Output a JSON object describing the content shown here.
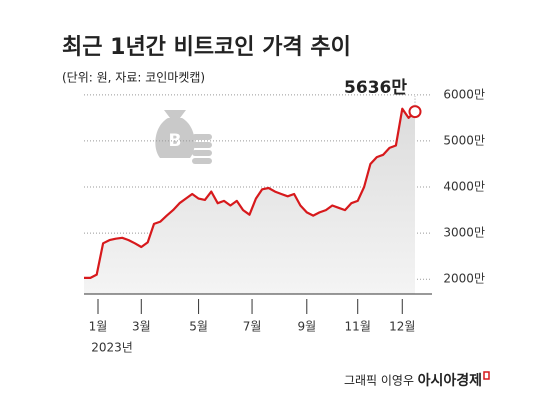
{
  "chart_data": {
    "type": "line",
    "title": "최근 1년간 비트코인 가격 추이",
    "subtitle": "(단위: 원, 자료: 코인마켓캡)",
    "xlabel": "2023년",
    "x": [
      0,
      1,
      2,
      3,
      4,
      5,
      6,
      7,
      8,
      9,
      10,
      11,
      12,
      13,
      14,
      15,
      16,
      17,
      18,
      19,
      20,
      21,
      22,
      23,
      24,
      25,
      26,
      27,
      28,
      29,
      30,
      31,
      32,
      33,
      34,
      35,
      36,
      37,
      38,
      39,
      40,
      41,
      42,
      43,
      44,
      45,
      46,
      47,
      48,
      49,
      50,
      51,
      52
    ],
    "series": [
      {
        "color": "#d7191c",
        "values": [
          2030,
          2030,
          2100,
          2780,
          2850,
          2880,
          2900,
          2850,
          2780,
          2700,
          2800,
          3200,
          3250,
          3380,
          3500,
          3650,
          3750,
          3850,
          3750,
          3720,
          3900,
          3650,
          3700,
          3600,
          3700,
          3500,
          3400,
          3750,
          3950,
          3980,
          3900,
          3850,
          3800,
          3850,
          3600,
          3450,
          3380,
          3450,
          3500,
          3600,
          3550,
          3500,
          3650,
          3700,
          4000,
          4500,
          4650,
          4700,
          4850,
          4900,
          5700,
          5500,
          5636
        ]
      }
    ],
    "annotations": [
      {
        "x": 52,
        "value": 5636,
        "label": "5636만"
      }
    ],
    "xlim": [
      0,
      52
    ],
    "xticks": [
      {
        "value": 2.2,
        "label": "1월"
      },
      {
        "value": 9,
        "label": "3월"
      },
      {
        "value": 18,
        "label": "5월"
      },
      {
        "value": 26.4,
        "label": "7월"
      },
      {
        "value": 35,
        "label": "9월"
      },
      {
        "value": 43,
        "label": "11월"
      },
      {
        "value": 50,
        "label": "12월"
      }
    ],
    "ylim": [
      1680,
      6300
    ],
    "yticks": [
      {
        "value": 2000,
        "label": "2000만"
      },
      {
        "value": 3000,
        "label": "3000만"
      },
      {
        "value": 4000,
        "label": "4000만"
      },
      {
        "value": 5000,
        "label": "5000만"
      },
      {
        "value": 6000,
        "label": "6000만"
      }
    ],
    "grid": true,
    "credit": "그래픽 이영우",
    "publisher": "아시아경제"
  }
}
